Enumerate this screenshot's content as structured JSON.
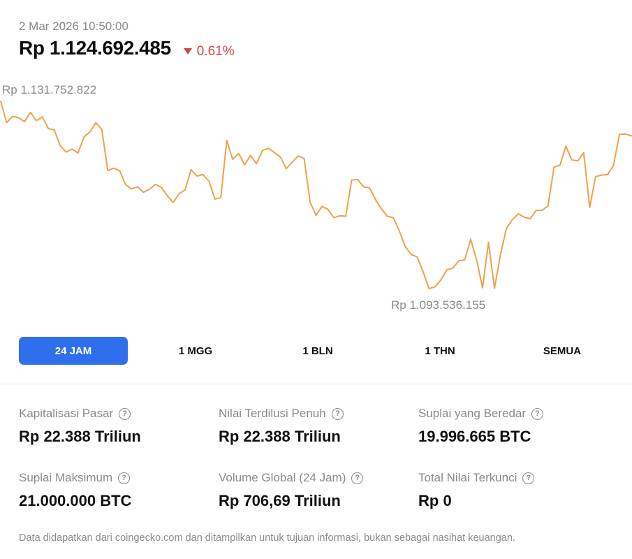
{
  "header": {
    "timestamp": "2 Mar 2026 10:50:00",
    "price": "Rp 1.124.692.485",
    "change": "0.61%",
    "change_direction": "down",
    "change_color": "#d3453e"
  },
  "chart_data": {
    "type": "line",
    "line_color": "#f0a04b",
    "grid": false,
    "max_label": "Rp 1.131.752.822",
    "min_label": "Rp 1.093.536.155",
    "max_value": 1131752822,
    "min_value": 1093536155,
    "series": [
      {
        "values": [
          1131752822,
          1127400000,
          1128700000,
          1128400000,
          1127600000,
          1129500000,
          1127800000,
          1128600000,
          1126200000,
          1125900000,
          1122700000,
          1121400000,
          1122000000,
          1121200000,
          1124500000,
          1125500000,
          1127400000,
          1126000000,
          1117600000,
          1118100000,
          1117600000,
          1114700000,
          1113900000,
          1114300000,
          1113200000,
          1113800000,
          1114800000,
          1114200000,
          1112500000,
          1111100000,
          1112900000,
          1113700000,
          1117800000,
          1116500000,
          1116800000,
          1115500000,
          1111800000,
          1112100000,
          1123800000,
          1119900000,
          1121100000,
          1118800000,
          1120700000,
          1119000000,
          1121700000,
          1122200000,
          1121300000,
          1120400000,
          1118000000,
          1119300000,
          1120600000,
          1120100000,
          1111200000,
          1108500000,
          1110300000,
          1109700000,
          1108000000,
          1108400000,
          1108300000,
          1115700000,
          1115800000,
          1114300000,
          1114100000,
          1111700000,
          1109800000,
          1108300000,
          1108000000,
          1105300000,
          1102100000,
          1100500000,
          1100000000,
          1097000000,
          1093536155,
          1093900000,
          1095300000,
          1097400000,
          1097700000,
          1099200000,
          1099400000,
          1103600000,
          1099400000,
          1093700000,
          1103000000,
          1093600000,
          1100400000,
          1105800000,
          1107600000,
          1108800000,
          1108100000,
          1107800000,
          1109500000,
          1109500000,
          1110400000,
          1118300000,
          1118700000,
          1122600000,
          1119800000,
          1119600000,
          1121300000,
          1110100000,
          1116400000,
          1116700000,
          1116800000,
          1118600000,
          1125000000,
          1125100000,
          1124692485
        ]
      }
    ]
  },
  "range_tabs": {
    "active": "24 JAM",
    "items": [
      "24 JAM",
      "1 MGG",
      "1 BLN",
      "1 THN",
      "SEMUA"
    ]
  },
  "stats": [
    {
      "label": "Kapitalisasi Pasar",
      "value": "Rp 22.388 Triliun"
    },
    {
      "label": "Nilai Terdilusi Penuh",
      "value": "Rp 22.388 Triliun"
    },
    {
      "label": "Suplai yang Beredar",
      "value": "19.996.665 BTC"
    },
    {
      "label": "Suplai Maksimum",
      "value": "21.000.000 BTC"
    },
    {
      "label": "Volume Global (24 Jam)",
      "value": "Rp 706,69 Triliun"
    },
    {
      "label": "Total Nilai Terkunci",
      "value": "Rp 0"
    }
  ],
  "help_icon_glyph": "?",
  "footer": {
    "disclaimer": "Data didapatkan dari coingecko.com dan ditampilkan untuk tujuan informasi, bukan sebagai nasihat keuangan."
  }
}
